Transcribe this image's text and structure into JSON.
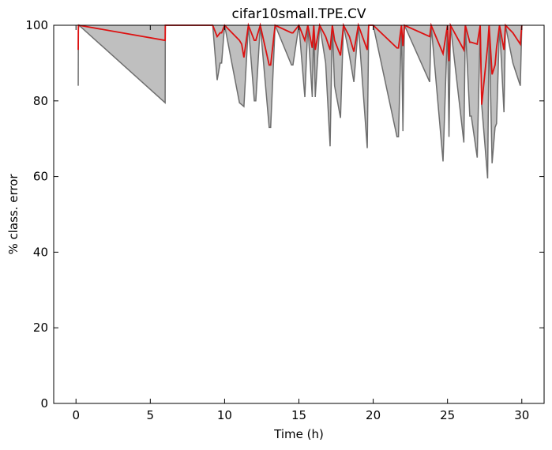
{
  "chart_data": {
    "type": "area",
    "title": "cifar10small.TPE.CV",
    "xlabel": "Time (h)",
    "ylabel": "% class. error",
    "xlim": [
      -1.5,
      31.5
    ],
    "ylim": [
      0,
      100
    ],
    "xticks": [
      0,
      5,
      10,
      15,
      20,
      25,
      30
    ],
    "yticks": [
      0,
      20,
      40,
      60,
      80,
      100
    ],
    "grid": false,
    "colors": {
      "band_fill": "#bfbfbf",
      "band_edge": "#6e6e6e",
      "mean_line": "#dd1111",
      "axes": "#000000"
    },
    "series": [
      {
        "role": "min-max band",
        "x": [
          0.15,
          0.16,
          0.2,
          6.0,
          6.01,
          9.2,
          9.5,
          9.7,
          9.8,
          10.0,
          11.0,
          11.15,
          11.3,
          11.6,
          12.0,
          12.1,
          12.4,
          13.0,
          13.1,
          13.4,
          14.5,
          14.6,
          15.0,
          15.4,
          15.6,
          15.9,
          16.0,
          16.1,
          16.4,
          16.8,
          17.1,
          17.25,
          17.4,
          17.8,
          18.0,
          18.4,
          18.7,
          19.0,
          19.6,
          19.7,
          20.0,
          21.6,
          21.7,
          21.9,
          22.0,
          22.1,
          23.8,
          23.9,
          24.7,
          25.0,
          25.1,
          25.2,
          26.1,
          26.2,
          26.5,
          26.6,
          27.0,
          27.2,
          27.3,
          27.7,
          27.8,
          28.0,
          28.2,
          28.3,
          28.5,
          28.8,
          28.9,
          29.4,
          29.9,
          30.0
        ],
        "lower": [
          84,
          99,
          100,
          79.5,
          100,
          100,
          85.5,
          90,
          90,
          100,
          79.5,
          79,
          78.5,
          100,
          80,
          80,
          100,
          73,
          73,
          100,
          89.5,
          89.5,
          100,
          81,
          100,
          81,
          100,
          81,
          100,
          90,
          68,
          100,
          84,
          75.5,
          100,
          92,
          85,
          100,
          67.5,
          100,
          100,
          70.5,
          70.5,
          100,
          72,
          100,
          85,
          100,
          64,
          100,
          70.5,
          100,
          69,
          100,
          76,
          76,
          65,
          100,
          79,
          59.5,
          100,
          63.5,
          73,
          74,
          100,
          77,
          100,
          90,
          84,
          100
        ],
        "upper": [
          100,
          100,
          100,
          100,
          100,
          100,
          100,
          100,
          100,
          100,
          100,
          100,
          100,
          100,
          100,
          100,
          100,
          100,
          100,
          100,
          100,
          100,
          100,
          100,
          100,
          100,
          100,
          100,
          100,
          100,
          100,
          100,
          100,
          100,
          100,
          100,
          100,
          100,
          100,
          100,
          100,
          100,
          100,
          100,
          100,
          100,
          100,
          100,
          100,
          100,
          100,
          100,
          100,
          100,
          100,
          100,
          100,
          100,
          100,
          100,
          100,
          100,
          100,
          100,
          100,
          100,
          100,
          100,
          100,
          100
        ]
      },
      {
        "role": "mean",
        "x": [
          0.15,
          0.16,
          0.2,
          6.0,
          6.01,
          9.2,
          9.5,
          9.7,
          9.8,
          10.0,
          11.0,
          11.15,
          11.3,
          11.6,
          12.0,
          12.1,
          12.4,
          13.0,
          13.1,
          13.4,
          14.5,
          14.6,
          15.0,
          15.4,
          15.6,
          15.9,
          16.0,
          16.1,
          16.4,
          16.8,
          17.1,
          17.25,
          17.4,
          17.8,
          18.0,
          18.4,
          18.7,
          19.0,
          19.6,
          19.7,
          20.0,
          21.6,
          21.7,
          21.9,
          22.0,
          22.1,
          23.8,
          23.9,
          24.7,
          25.0,
          25.1,
          25.2,
          26.1,
          26.2,
          26.5,
          26.6,
          27.0,
          27.2,
          27.3,
          27.7,
          27.8,
          28.0,
          28.2,
          28.3,
          28.5,
          28.8,
          28.9,
          29.4,
          29.9,
          30.0
        ],
        "values": [
          93.5,
          100,
          100,
          96,
          100,
          100,
          97,
          98,
          98,
          100,
          96,
          95,
          91.5,
          100,
          96,
          96,
          100,
          89.5,
          89.5,
          100,
          98,
          98,
          100,
          96,
          100,
          94,
          100,
          93.5,
          100,
          97,
          93.5,
          100,
          96,
          92,
          100,
          97,
          93,
          100,
          93.5,
          100,
          100,
          94,
          94,
          100,
          94.5,
          100,
          97,
          100,
          92.5,
          100,
          90.5,
          100,
          93.5,
          100,
          95.5,
          95.5,
          95,
          100,
          79,
          94.5,
          100,
          87,
          89.5,
          94,
          100,
          93.5,
          100,
          98,
          95,
          100
        ]
      }
    ]
  }
}
